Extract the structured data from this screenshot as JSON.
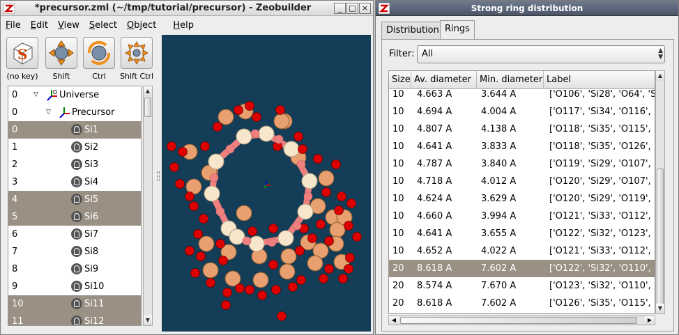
{
  "window1": {
    "title": "*precursor.zml (~/tmp/tutorial/precursor) - Zeobuilder",
    "controls": {
      "minimize": "_",
      "maximize": "□",
      "close": "×"
    },
    "menu": [
      {
        "underline": "F",
        "rest": "ile"
      },
      {
        "underline": "E",
        "rest": "dit"
      },
      {
        "underline": "V",
        "rest": "iew"
      },
      {
        "underline": "S",
        "rest": "elect"
      },
      {
        "underline": "O",
        "rest": "bject"
      },
      {
        "underline": "H",
        "rest": "elp"
      }
    ],
    "toolbar": [
      {
        "label": "(no key)",
        "icon": "selection-mode-icon"
      },
      {
        "label": "Shift",
        "icon": "translate-icon"
      },
      {
        "label": "Ctrl",
        "icon": "rotate-icon"
      },
      {
        "label": "Shift Ctrl",
        "icon": "scale-icon"
      }
    ],
    "tree": [
      {
        "index": "0",
        "label": "Universe",
        "icon": "universe-icon",
        "depth": 0,
        "expander": "▽",
        "selected": false
      },
      {
        "index": "0",
        "label": "Precursor",
        "icon": "frame-icon",
        "depth": 1,
        "expander": "▽",
        "selected": false
      },
      {
        "index": "0",
        "label": "Si1",
        "icon": "atom-icon",
        "depth": 2,
        "selected": true
      },
      {
        "index": "1",
        "label": "Si2",
        "icon": "atom-icon",
        "depth": 2,
        "selected": false
      },
      {
        "index": "2",
        "label": "Si3",
        "icon": "atom-icon",
        "depth": 2,
        "selected": false
      },
      {
        "index": "3",
        "label": "Si4",
        "icon": "atom-icon",
        "depth": 2,
        "selected": false
      },
      {
        "index": "4",
        "label": "Si5",
        "icon": "atom-icon",
        "depth": 2,
        "selected": true
      },
      {
        "index": "5",
        "label": "Si6",
        "icon": "atom-icon",
        "depth": 2,
        "selected": true
      },
      {
        "index": "6",
        "label": "Si7",
        "icon": "atom-icon",
        "depth": 2,
        "selected": false
      },
      {
        "index": "7",
        "label": "Si8",
        "icon": "atom-icon",
        "depth": 2,
        "selected": false
      },
      {
        "index": "8",
        "label": "Si9",
        "icon": "atom-icon",
        "depth": 2,
        "selected": false
      },
      {
        "index": "9",
        "label": "Si10",
        "icon": "atom-icon",
        "depth": 2,
        "selected": false
      },
      {
        "index": "10",
        "label": "Si11",
        "icon": "atom-icon",
        "depth": 2,
        "selected": true
      },
      {
        "index": "11",
        "label": "Si12",
        "icon": "atom-icon",
        "depth": 2,
        "selected": true
      }
    ],
    "viewport": {
      "background": "#143d58",
      "silicon_color": "#e8a070",
      "oxygen_color": "#dd0000",
      "ring_atom_color": "#f6e6cc",
      "ring_bond_color": "#f08080"
    }
  },
  "window2": {
    "title": "Strong ring distribution",
    "tabs": [
      "Distribution",
      "Rings"
    ],
    "active_tab": "Rings",
    "filter_label": "Filter:",
    "filter_value": "All",
    "columns": [
      "Size",
      "Av. diameter",
      "Min. diameter",
      "Label"
    ],
    "rows": [
      {
        "size": "10",
        "av": "4.663 A",
        "min": "3.644 A",
        "label": "['O106', 'Si28', 'O64', 'Si",
        "selected": false
      },
      {
        "size": "10",
        "av": "4.694 A",
        "min": "4.004 A",
        "label": "['O117', 'Si34', 'O116', 'S",
        "selected": false
      },
      {
        "size": "10",
        "av": "4.807 A",
        "min": "4.138 A",
        "label": "['O118', 'Si35', 'O115', 'S",
        "selected": false
      },
      {
        "size": "10",
        "av": "4.641 A",
        "min": "3.833 A",
        "label": "['O118', 'Si35', 'O126', 'S",
        "selected": false
      },
      {
        "size": "10",
        "av": "4.787 A",
        "min": "3.840 A",
        "label": "['O119', 'Si29', 'O107', 'S",
        "selected": false
      },
      {
        "size": "10",
        "av": "4.718 A",
        "min": "4.012 A",
        "label": "['O120', 'Si29', 'O107', 'S",
        "selected": false
      },
      {
        "size": "10",
        "av": "4.624 A",
        "min": "3.629 A",
        "label": "['O120', 'Si29', 'O119', 'S",
        "selected": false
      },
      {
        "size": "10",
        "av": "4.660 A",
        "min": "3.994 A",
        "label": "['O121', 'Si33', 'O112', 'S",
        "selected": false
      },
      {
        "size": "10",
        "av": "4.641 A",
        "min": "3.655 A",
        "label": "['O122', 'Si32', 'O123', 'S",
        "selected": false
      },
      {
        "size": "10",
        "av": "4.652 A",
        "min": "4.022 A",
        "label": "['O121', 'Si33', 'O112', 'S",
        "selected": false
      },
      {
        "size": "20",
        "av": "8.618 A",
        "min": "7.602 A",
        "label": "['O122', 'Si32', 'O110', 'S",
        "selected": true
      },
      {
        "size": "20",
        "av": "8.574 A",
        "min": "7.670 A",
        "label": "['O123', 'Si32', 'O110', 'S",
        "selected": false
      },
      {
        "size": "20",
        "av": "8.618 A",
        "min": "7.602 A",
        "label": "['O126', 'Si35', 'O115', 'S",
        "selected": false
      }
    ]
  }
}
